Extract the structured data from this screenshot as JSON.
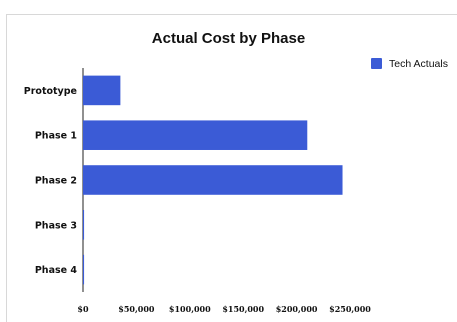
{
  "chart_data": {
    "type": "bar",
    "orientation": "horizontal",
    "title": "Actual Cost by Phase",
    "categories": [
      "Prototype",
      "Phase 1",
      "Phase 2",
      "Phase 3",
      "Phase 4"
    ],
    "series": [
      {
        "name": "Tech Actuals",
        "values": [
          35000,
          210000,
          243000,
          1000,
          1000
        ],
        "color": "#3b5bd6"
      }
    ],
    "x_ticks": [
      "$0",
      "$50,000",
      "$100,000",
      "$150,000",
      "$200,000",
      "$250,000"
    ],
    "xlim": [
      0,
      250000
    ],
    "grid": false,
    "legend": "top-right"
  }
}
